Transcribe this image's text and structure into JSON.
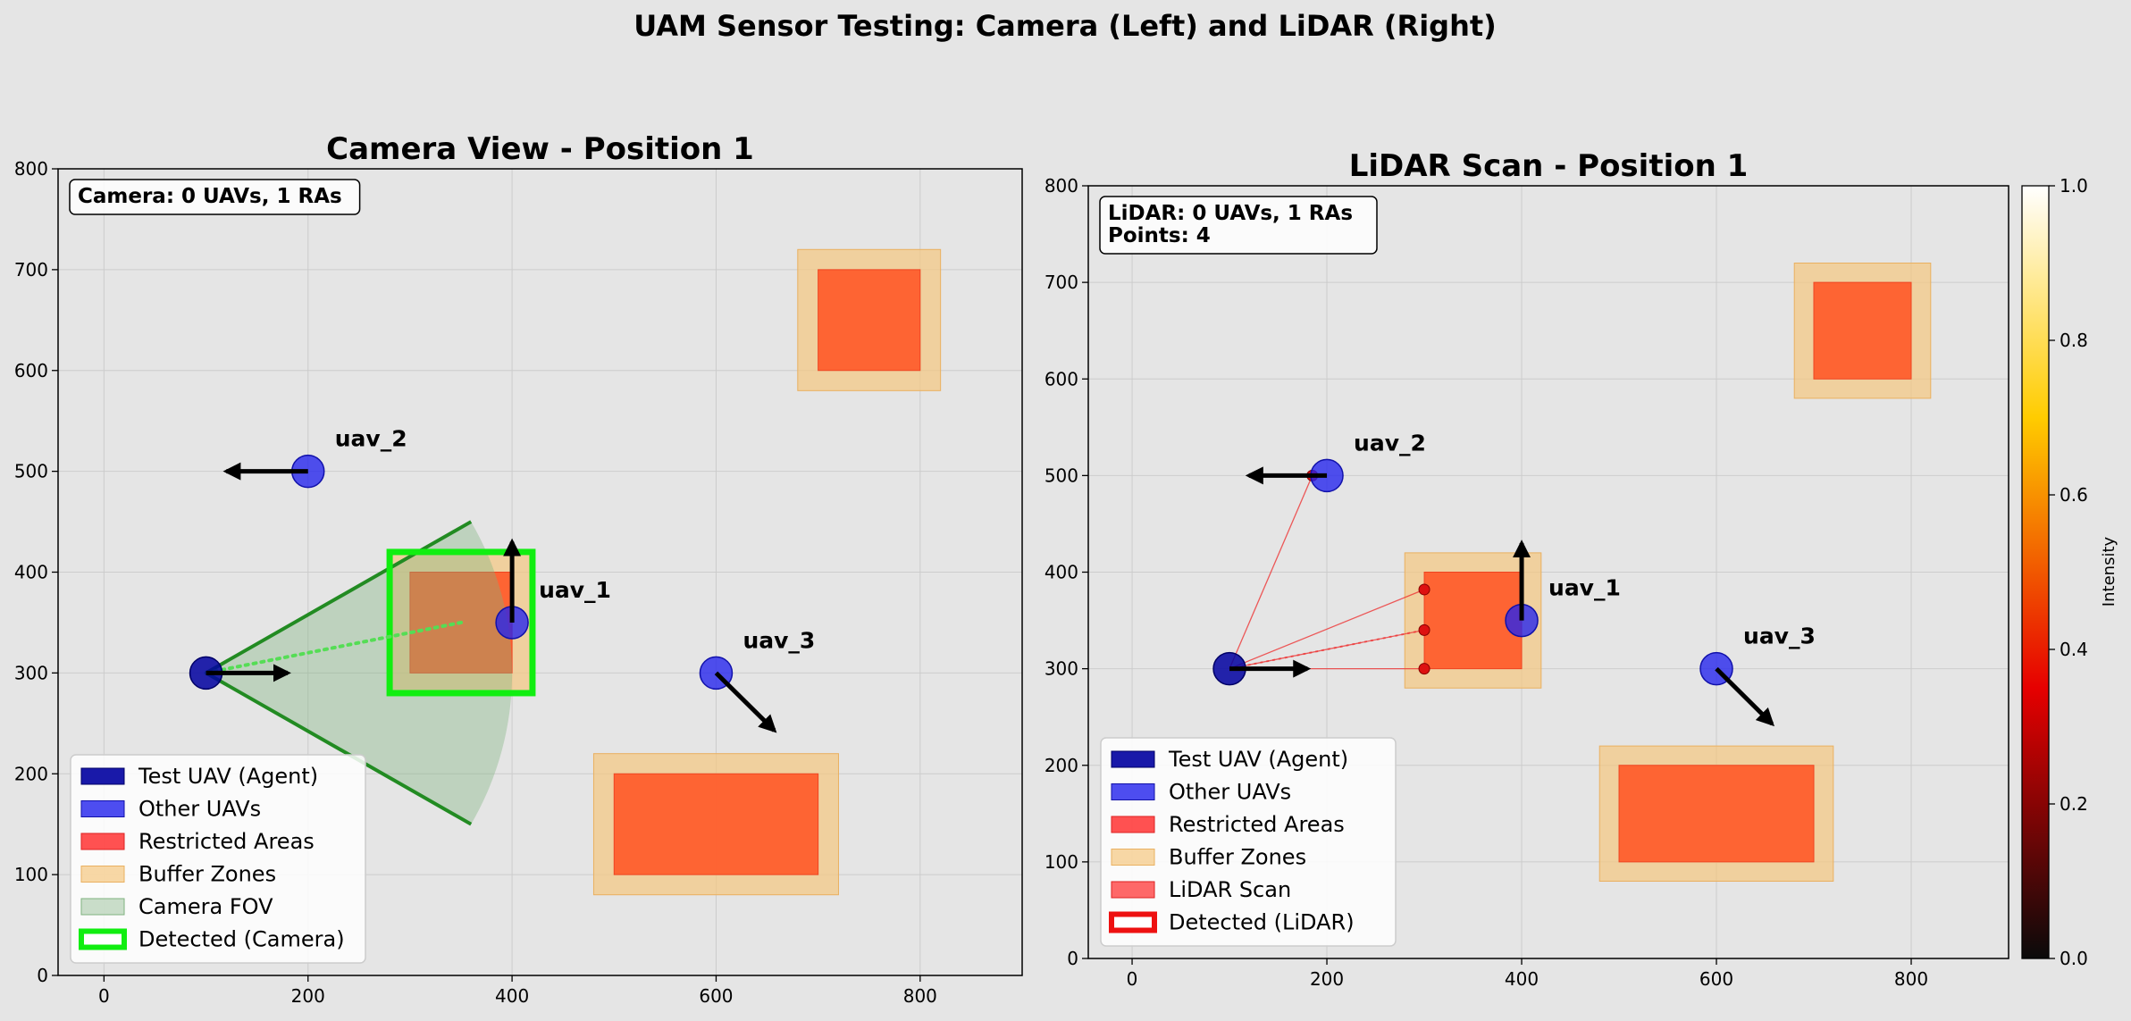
{
  "suptitle": "UAM Sensor Testing: Camera (Left) and LiDAR (Right)",
  "colors": {
    "background": "#e5e5e5",
    "agent": "#0000a0",
    "other_uav": "#2222ee",
    "restricted": "#ff5a2a",
    "buffer": "#f5c880",
    "camera_fov": "#7fb27f",
    "fov_edge": "#228b22",
    "detected_camera": "#11ee11",
    "lidar_line": "#ee3333",
    "lidar_point": "#dd1111",
    "grid": "#cccccc"
  },
  "chart_data": [
    {
      "type": "scatter",
      "title": "Camera View - Position 1",
      "xlim": [
        -45,
        900
      ],
      "ylim": [
        0,
        800
      ],
      "xticks": [
        0,
        200,
        400,
        600,
        800
      ],
      "yticks": [
        0,
        100,
        200,
        300,
        400,
        500,
        600,
        700,
        800
      ],
      "grid": true,
      "info_text": [
        "Camera: 0 UAVs, 1 RAs"
      ],
      "agent": {
        "x": 100,
        "y": 300,
        "heading": [
          80,
          0
        ]
      },
      "uavs": [
        {
          "name": "uav_1",
          "x": 400,
          "y": 350,
          "heading": [
            0,
            80
          ]
        },
        {
          "name": "uav_2",
          "x": 200,
          "y": 500,
          "heading": [
            -80,
            0
          ]
        },
        {
          "name": "uav_3",
          "x": 600,
          "y": 300,
          "heading": [
            57,
            -57
          ]
        }
      ],
      "restricted_areas": [
        {
          "x0": 300,
          "y0": 300,
          "x1": 400,
          "y1": 400
        },
        {
          "x0": 700,
          "y0": 600,
          "x1": 800,
          "y1": 700
        },
        {
          "x0": 500,
          "y0": 100,
          "x1": 700,
          "y1": 200
        }
      ],
      "buffer_zones": [
        {
          "x0": 280,
          "y0": 280,
          "x1": 420,
          "y1": 420
        },
        {
          "x0": 680,
          "y0": 580,
          "x1": 820,
          "y1": 720
        },
        {
          "x0": 480,
          "y0": 80,
          "x1": 720,
          "y1": 220
        }
      ],
      "camera_fov": {
        "range": 300,
        "half_angle_deg": 30,
        "heading_deg": 0
      },
      "detected": [
        {
          "x0": 280,
          "y0": 280,
          "x1": 420,
          "y1": 420
        }
      ],
      "detection_line": {
        "x0": 100,
        "y0": 300,
        "x1": 350,
        "y1": 350
      },
      "legend": {
        "placement": "lower-left",
        "entries": [
          "Test UAV (Agent)",
          "Other UAVs",
          "Restricted Areas",
          "Buffer Zones",
          "Camera FOV",
          "Detected (Camera)"
        ]
      }
    },
    {
      "type": "scatter",
      "title": "LiDAR Scan - Position 1",
      "xlim": [
        -45,
        900
      ],
      "ylim": [
        0,
        800
      ],
      "xticks": [
        0,
        200,
        400,
        600,
        800
      ],
      "yticks": [
        0,
        100,
        200,
        300,
        400,
        500,
        600,
        700,
        800
      ],
      "grid": true,
      "info_text": [
        "LiDAR: 0 UAVs, 1 RAs",
        "Points: 4"
      ],
      "agent": {
        "x": 100,
        "y": 300,
        "heading": [
          80,
          0
        ]
      },
      "uavs": [
        {
          "name": "uav_1",
          "x": 400,
          "y": 350,
          "heading": [
            0,
            80
          ]
        },
        {
          "name": "uav_2",
          "x": 200,
          "y": 500,
          "heading": [
            -80,
            0
          ]
        },
        {
          "name": "uav_3",
          "x": 600,
          "y": 300,
          "heading": [
            57,
            -57
          ]
        }
      ],
      "restricted_areas": [
        {
          "x0": 300,
          "y0": 300,
          "x1": 400,
          "y1": 400
        },
        {
          "x0": 700,
          "y0": 600,
          "x1": 800,
          "y1": 700
        },
        {
          "x0": 500,
          "y0": 100,
          "x1": 700,
          "y1": 200
        }
      ],
      "buffer_zones": [
        {
          "x0": 280,
          "y0": 280,
          "x1": 420,
          "y1": 420
        },
        {
          "x0": 680,
          "y0": 580,
          "x1": 820,
          "y1": 720
        },
        {
          "x0": 480,
          "y0": 80,
          "x1": 720,
          "y1": 220
        }
      ],
      "lidar_points": [
        {
          "x": 185,
          "y": 500
        },
        {
          "x": 300,
          "y": 382
        },
        {
          "x": 300,
          "y": 340
        },
        {
          "x": 300,
          "y": 300
        }
      ],
      "colorbar": {
        "label": "Intensity",
        "ticks": [
          "0.0",
          "0.2",
          "0.4",
          "0.6",
          "0.8",
          "1.0"
        ],
        "colormap": "hot"
      },
      "legend": {
        "placement": "lower-left",
        "entries": [
          "Test UAV (Agent)",
          "Other UAVs",
          "Restricted Areas",
          "Buffer Zones",
          "LiDAR Scan",
          "Detected (LiDAR)"
        ]
      }
    }
  ]
}
